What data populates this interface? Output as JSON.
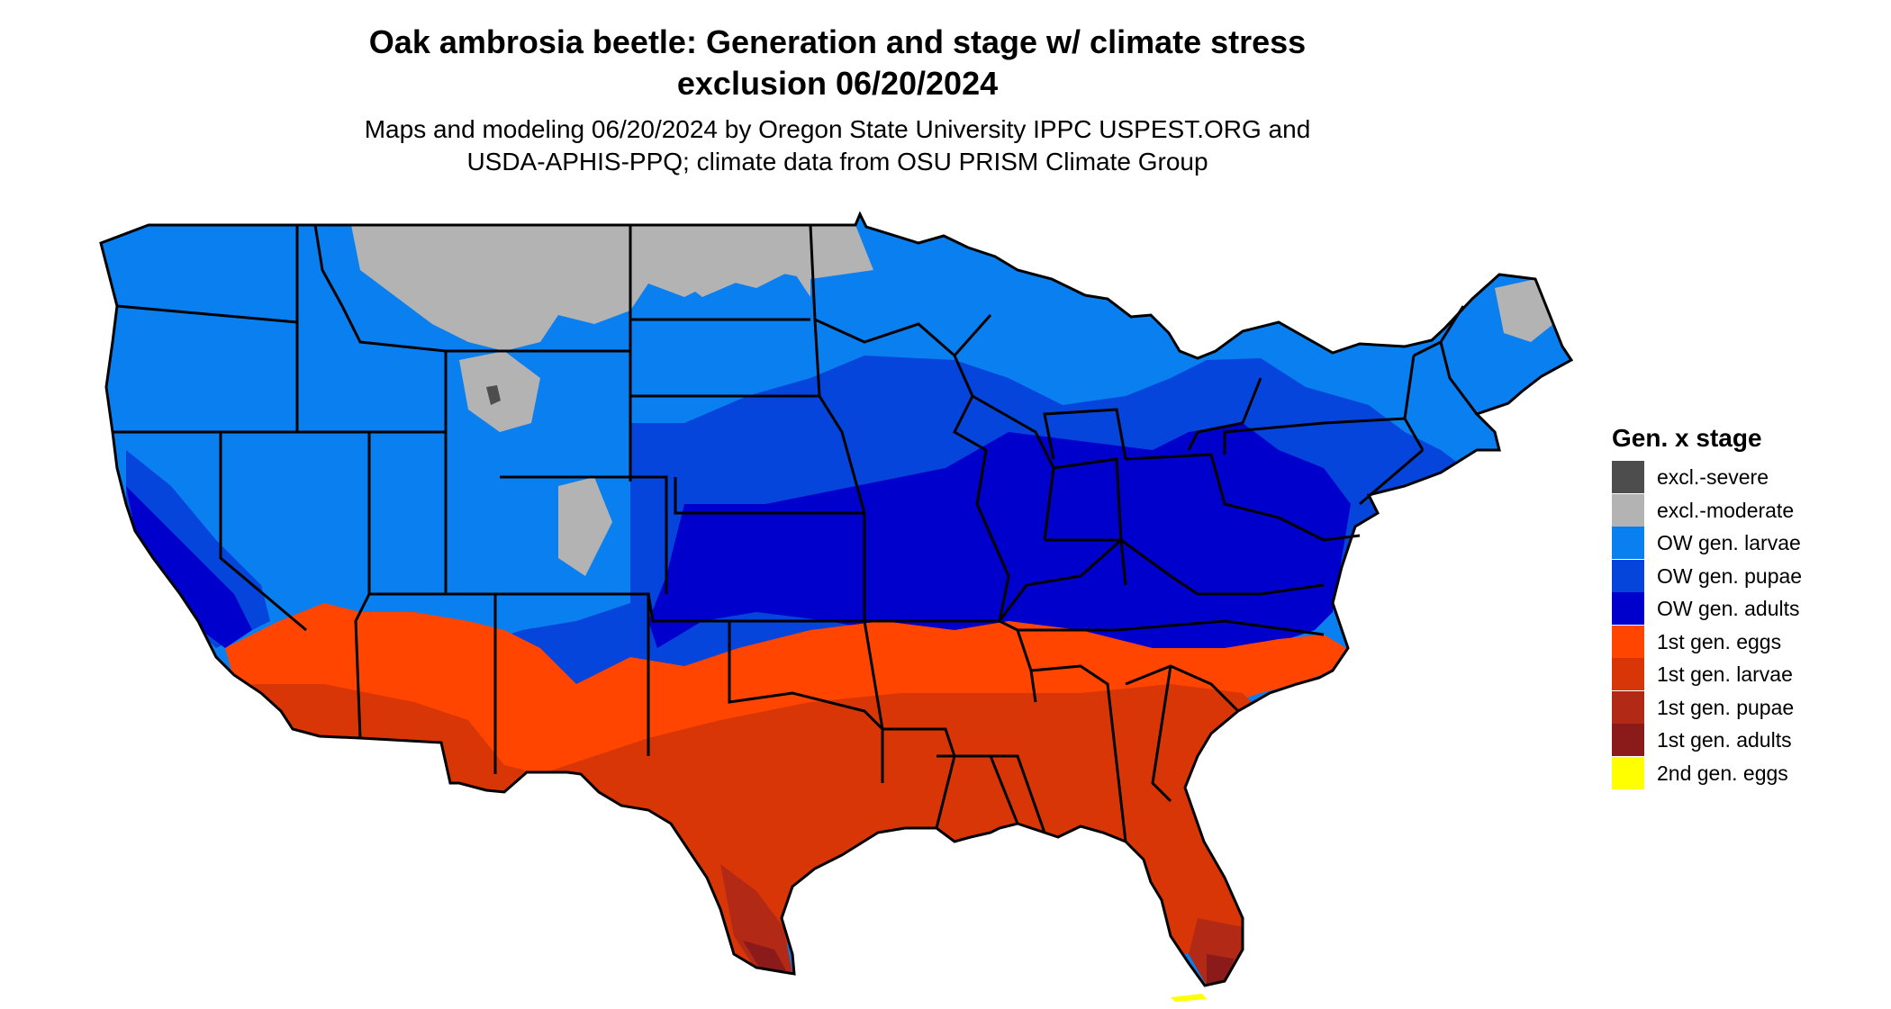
{
  "title": {
    "line1": "Oak ambrosia beetle: Generation and stage w/ climate stress",
    "line2": "exclusion 06/20/2024"
  },
  "subtitle": {
    "line1": "Maps and modeling 06/20/2024 by Oregon State University IPPC USPEST.ORG and",
    "line2": "USDA-APHIS-PPQ; climate data from OSU PRISM Climate Group"
  },
  "legend": {
    "title": "Gen. x stage",
    "items": [
      {
        "label": "excl.-severe",
        "color": "#4d4d4d"
      },
      {
        "label": "excl.-moderate",
        "color": "#b3b3b3"
      },
      {
        "label": "OW gen. larvae",
        "color": "#0a7fef"
      },
      {
        "label": "OW gen. pupae",
        "color": "#0545db"
      },
      {
        "label": "OW gen. adults",
        "color": "#0000cc"
      },
      {
        "label": "1st gen. eggs",
        "color": "#ff4500"
      },
      {
        "label": "1st gen. larvae",
        "color": "#d93608"
      },
      {
        "label": "1st gen. pupae",
        "color": "#b22a16"
      },
      {
        "label": "1st gen. adults",
        "color": "#8b1a1a"
      },
      {
        "label": "2nd gen. eggs",
        "color": "#ffff00"
      }
    ]
  }
}
